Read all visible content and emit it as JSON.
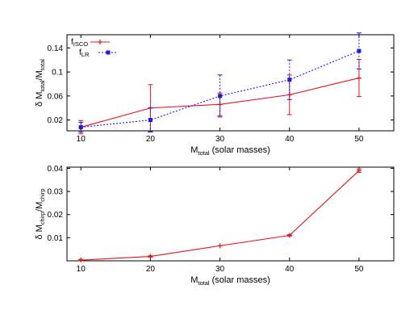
{
  "colors": {
    "red": "#e8121b",
    "blue": "#1a1ae6",
    "frame": "#000000"
  },
  "chart_data": [
    {
      "type": "line",
      "xlabel": {
        "main": "M",
        "sub": "total",
        "rest": " (solar masses)"
      },
      "ylabel": {
        "prefix": "δ M",
        "sub1": "total",
        "mid": "/M",
        "sub2": "total"
      },
      "xlim": [
        8,
        55
      ],
      "ylim": [
        0.002,
        0.162
      ],
      "xticks": [
        10,
        20,
        30,
        40,
        50
      ],
      "xtick_labels": [
        "10",
        "20",
        "30",
        "40",
        "50"
      ],
      "yticks": [
        0.02,
        0.06,
        0.1,
        0.14
      ],
      "ytick_labels": [
        "0.02",
        "0.06",
        "0.1",
        "0.14"
      ],
      "grid": false,
      "legend_position": "top-left",
      "series": [
        {
          "name": {
            "main": "f",
            "sub": "ISCO"
          },
          "color": "#e8121b",
          "dashed": false,
          "marker": "plus",
          "x": [
            10,
            20,
            30,
            40,
            50
          ],
          "y": [
            0.008,
            0.04,
            0.046,
            0.062,
            0.09
          ],
          "err": [
            0.011,
            0.039,
            0.019,
            0.033,
            0.031
          ]
        },
        {
          "name": {
            "main": "f",
            "sub": "LR"
          },
          "color": "#1a1ae6",
          "dashed": true,
          "marker": "square",
          "x": [
            10,
            20,
            30,
            40,
            50
          ],
          "y": [
            0.008,
            0.02,
            0.06,
            0.087,
            0.135
          ],
          "err": [
            0.008,
            0.02,
            0.035,
            0.033,
            0.03
          ]
        }
      ]
    },
    {
      "type": "line",
      "xlabel": {
        "main": "M",
        "sub": "total",
        "rest": " (solar masses)"
      },
      "ylabel": {
        "prefix": "δ M",
        "sub1": "chirp",
        "mid": "/M",
        "sub2": "chirp"
      },
      "xlim": [
        8,
        55
      ],
      "ylim": [
        0.0,
        0.0405
      ],
      "xticks": [
        10,
        20,
        30,
        40,
        50
      ],
      "xtick_labels": [
        "10",
        "20",
        "30",
        "40",
        "50"
      ],
      "yticks": [
        0.01,
        0.02,
        0.03,
        0.04
      ],
      "ytick_labels": [
        "0.01",
        "0.02",
        "0.03",
        "0.04"
      ],
      "grid": false,
      "series": [
        {
          "color": "#e8121b",
          "dashed": false,
          "marker": "plus",
          "x": [
            10,
            20,
            30,
            40,
            50
          ],
          "y": [
            0.0003,
            0.0019,
            0.0065,
            0.011,
            0.039
          ],
          "err": [
            0.0003,
            0.0003,
            0.0,
            0.0003,
            0.0007
          ]
        }
      ]
    }
  ]
}
